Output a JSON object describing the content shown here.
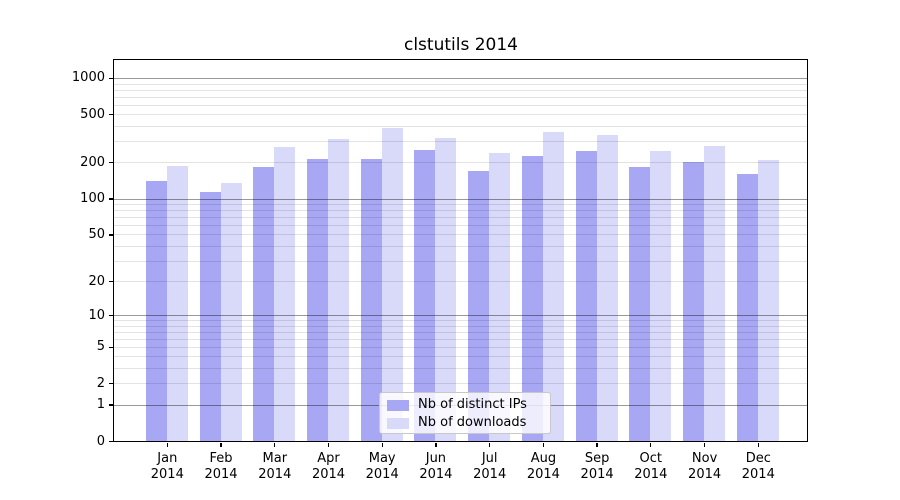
{
  "title": "clstutils 2014",
  "chart_data": {
    "type": "bar",
    "title": "clstutils 2014",
    "categories": [
      "Jan 2014",
      "Feb 2014",
      "Mar 2014",
      "Apr 2014",
      "May 2014",
      "Jun 2014",
      "Jul 2014",
      "Aug 2014",
      "Sep 2014",
      "Oct 2014",
      "Nov 2014",
      "Dec 2014"
    ],
    "series": [
      {
        "name": "Nb of distinct IPs",
        "color": "#a7a7f3",
        "values": [
          141,
          113,
          182,
          213,
          213,
          251,
          168,
          227,
          247,
          182,
          200,
          160
        ]
      },
      {
        "name": "Nb of downloads",
        "color": "#d9d9f9",
        "values": [
          187,
          134,
          266,
          310,
          385,
          318,
          239,
          355,
          339,
          250,
          275,
          209
        ]
      }
    ],
    "yscale": "log1p",
    "ylim": [
      0,
      1500
    ],
    "yticks": [
      0,
      1,
      2,
      5,
      10,
      20,
      50,
      100,
      200,
      500,
      1000
    ],
    "major_gridlines": [
      1,
      10,
      100,
      1000
    ],
    "minor_gridlines": [
      2,
      3,
      4,
      5,
      6,
      7,
      8,
      9,
      20,
      30,
      40,
      50,
      60,
      70,
      80,
      90,
      200,
      300,
      400,
      500,
      600,
      700,
      800,
      900
    ],
    "grid": true,
    "legend_position": "lower center"
  },
  "colors": {
    "bar_distinct_ips": "#a7a7f3",
    "bar_downloads": "#d9d9f9",
    "grid_major": "#9b9b9b",
    "grid_minor": "#e3e3e3",
    "spine": "#000000",
    "background": "#ffffff",
    "text": "#000000"
  }
}
